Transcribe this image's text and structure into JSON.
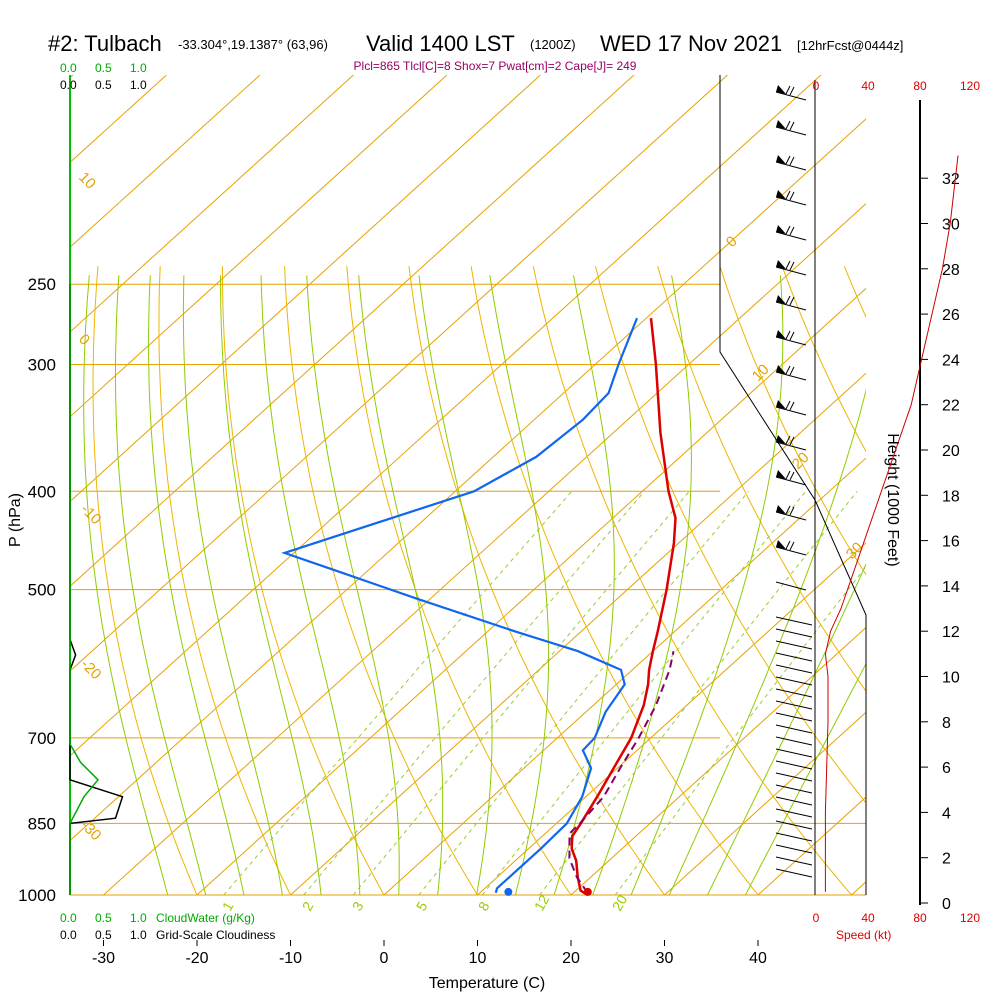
{
  "header": {
    "title": "#2: Tulbach",
    "coords": "-33.304°,19.1387° (63,96)",
    "valid": "Valid 1400 LST",
    "zulu": "(1200Z)",
    "date": "WED 17 Nov 2021",
    "fcst": "[12hrFcst@0444z]",
    "params": "Plcl=865 Tlcl[C]=8 Shox=7 Pwat[cm]=2 Cape[J]= 249"
  },
  "cloud_legend": {
    "top_green": [
      "0.0",
      "0.5",
      "1.0"
    ],
    "top_black": [
      "0.0",
      "0.5",
      "1.0"
    ],
    "bottom_green": [
      "0.0",
      "0.5",
      "1.0"
    ],
    "bottom_black": [
      "0.0",
      "0.5",
      "1.0"
    ],
    "cloudwater_label": "CloudWater (g/Kg)",
    "cloudiness_label": "Grid-Scale Cloudiness"
  },
  "speed_axis": {
    "ticks": [
      "0",
      "40",
      "80",
      "120"
    ],
    "label": "Speed (kt)"
  },
  "colors": {
    "isotherm": "#e6a200",
    "dry_adiabat": "#f0b400",
    "moist_adiabat": "#8fcc00",
    "mixing_ratio": "#99cc33",
    "temperature": "#dd0000",
    "dewpoint": "#1166ee",
    "parcel": "#880066",
    "cloudwater": "#00aa00",
    "cloudiness": "#000000",
    "speed": "#cc0000"
  },
  "chart_data": {
    "type": "line",
    "diagram": "skew-T log-P",
    "ylabel": "P (hPa)",
    "xlabel": "Temperature (C)",
    "right_label": "Height (1000 Feet)",
    "pressure_ticks": [
      250,
      300,
      400,
      500,
      700,
      850,
      1000
    ],
    "temperature_ticks": [
      -30,
      -20,
      -10,
      0,
      10,
      20,
      30,
      40
    ],
    "height_ticks": [
      0,
      2,
      4,
      6,
      8,
      10,
      12,
      14,
      16,
      18,
      20,
      22,
      24,
      26,
      28,
      30,
      32
    ],
    "isotherm_labels": [
      "10",
      "0",
      "-10",
      "-20",
      "-30",
      "0",
      "10",
      "20",
      "30"
    ],
    "mixing_ratio_labels": [
      "1",
      "2",
      "3",
      "5",
      "8",
      "12",
      "20"
    ],
    "series": [
      {
        "name": "temperature",
        "points": [
          [
            1000,
            21.8
          ],
          [
            990,
            20.5
          ],
          [
            960,
            18.6
          ],
          [
            925,
            16.5
          ],
          [
            900,
            14.6
          ],
          [
            875,
            13.2
          ],
          [
            850,
            12.6
          ],
          [
            800,
            11.2
          ],
          [
            750,
            9.6
          ],
          [
            700,
            7.9
          ],
          [
            650,
            5.4
          ],
          [
            620,
            3.4
          ],
          [
            600,
            1.8
          ],
          [
            575,
            0.0
          ],
          [
            550,
            -1.8
          ],
          [
            500,
            -5.8
          ],
          [
            450,
            -10.5
          ],
          [
            425,
            -13.3
          ],
          [
            400,
            -17.2
          ],
          [
            350,
            -25.0
          ],
          [
            300,
            -33.5
          ],
          [
            270,
            -39.5
          ]
        ]
      },
      {
        "name": "dewpoint",
        "points": [
          [
            995,
            11.7
          ],
          [
            985,
            11.3
          ],
          [
            900,
            11.3
          ],
          [
            850,
            11.1
          ],
          [
            800,
            9.6
          ],
          [
            750,
            7.2
          ],
          [
            720,
            4.2
          ],
          [
            700,
            4.0
          ],
          [
            660,
            2.1
          ],
          [
            620,
            0.9
          ],
          [
            600,
            -1.2
          ],
          [
            575,
            -8.0
          ],
          [
            550,
            -17.0
          ],
          [
            510,
            -31.6
          ],
          [
            480,
            -43.0
          ],
          [
            460,
            -51.0
          ],
          [
            400,
            -38.0
          ],
          [
            370,
            -35.4
          ],
          [
            340,
            -34.8
          ],
          [
            320,
            -35.2
          ],
          [
            300,
            -37.5
          ],
          [
            270,
            -41.0
          ]
        ]
      },
      {
        "name": "parcel",
        "points": [
          [
            995,
            21.5
          ],
          [
            960,
            18.5
          ],
          [
            920,
            15.5
          ],
          [
            870,
            12.6
          ],
          [
            850,
            12.5
          ],
          [
            800,
            11.9
          ],
          [
            750,
            10.3
          ],
          [
            700,
            8.7
          ],
          [
            650,
            6.7
          ],
          [
            600,
            4.0
          ],
          [
            575,
            2.2
          ]
        ]
      }
    ],
    "surface": {
      "temperature": 21.8,
      "dewpoint": 13.3
    },
    "wind_speed_profile_kt": [
      [
        0.5,
        8
      ],
      [
        2,
        8
      ],
      [
        4,
        8
      ],
      [
        6,
        9
      ],
      [
        8,
        10
      ],
      [
        10,
        10
      ],
      [
        11,
        8
      ],
      [
        12,
        12
      ],
      [
        13,
        20
      ],
      [
        14,
        26
      ],
      [
        16,
        38
      ],
      [
        18,
        50
      ],
      [
        20,
        62
      ],
      [
        22,
        74
      ],
      [
        24,
        82
      ],
      [
        26,
        90
      ],
      [
        28,
        98
      ],
      [
        30,
        104
      ],
      [
        32,
        108
      ],
      [
        33,
        110
      ]
    ],
    "cloudwater_profile": [
      [
        1000,
        0.0
      ],
      [
        850,
        0.0
      ],
      [
        800,
        0.2
      ],
      [
        770,
        0.4
      ],
      [
        740,
        0.15
      ],
      [
        710,
        0.0
      ],
      [
        250,
        0.0
      ]
    ],
    "cloudiness_profile": [
      [
        1000,
        0.0
      ],
      [
        850,
        0.0
      ],
      [
        840,
        0.65
      ],
      [
        800,
        0.75
      ],
      [
        770,
        0.0
      ],
      [
        720,
        0.0
      ],
      [
        600,
        0.0
      ],
      [
        580,
        0.08
      ],
      [
        560,
        0.0
      ],
      [
        250,
        0.0
      ]
    ]
  }
}
